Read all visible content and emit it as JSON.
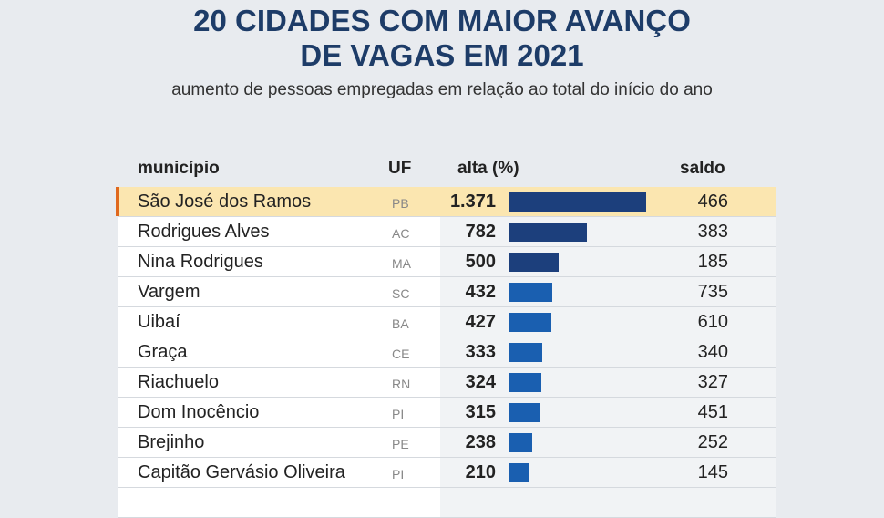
{
  "title_line1": "20 CIDADES COM MAIOR AVANÇO",
  "title_line2": "DE VAGAS EM 2021",
  "subtitle": "aumento de pessoas empregadas em relação ao total do início do ano",
  "colors": {
    "dark_bar": "#1c3f7c",
    "light_bar": "#1a5fb0",
    "highlight": "#fbe6b0",
    "accent": "#e0681e"
  },
  "chart_data": {
    "type": "table",
    "title": "20 CIDADES COM MAIOR AVANÇO DE VAGAS EM 2021",
    "columns": [
      "município",
      "UF",
      "alta (%)",
      "saldo"
    ],
    "rows": [
      {
        "municipio": "São José dos Ramos",
        "uf": "PB",
        "alta_label": "1.371",
        "alta": 1371,
        "saldo": "466",
        "highlight": true
      },
      {
        "municipio": "Rodrigues Alves",
        "uf": "AC",
        "alta_label": "782",
        "alta": 782,
        "saldo": "383"
      },
      {
        "municipio": "Nina Rodrigues",
        "uf": "MA",
        "alta_label": "500",
        "alta": 500,
        "saldo": "185"
      },
      {
        "municipio": "Vargem",
        "uf": "SC",
        "alta_label": "432",
        "alta": 432,
        "saldo": "735"
      },
      {
        "municipio": "Uibaí",
        "uf": "BA",
        "alta_label": "427",
        "alta": 427,
        "saldo": "610"
      },
      {
        "municipio": "Graça",
        "uf": "CE",
        "alta_label": "333",
        "alta": 333,
        "saldo": "340"
      },
      {
        "municipio": "Riachuelo",
        "uf": "RN",
        "alta_label": "324",
        "alta": 324,
        "saldo": "327"
      },
      {
        "municipio": "Dom Inocêncio",
        "uf": "PI",
        "alta_label": "315",
        "alta": 315,
        "saldo": "451"
      },
      {
        "municipio": "Brejinho",
        "uf": "PE",
        "alta_label": "238",
        "alta": 238,
        "saldo": "252"
      },
      {
        "municipio": "Capitão Gervásio Oliveira",
        "uf": "PI",
        "alta_label": "210",
        "alta": 210,
        "saldo": "145"
      }
    ]
  }
}
